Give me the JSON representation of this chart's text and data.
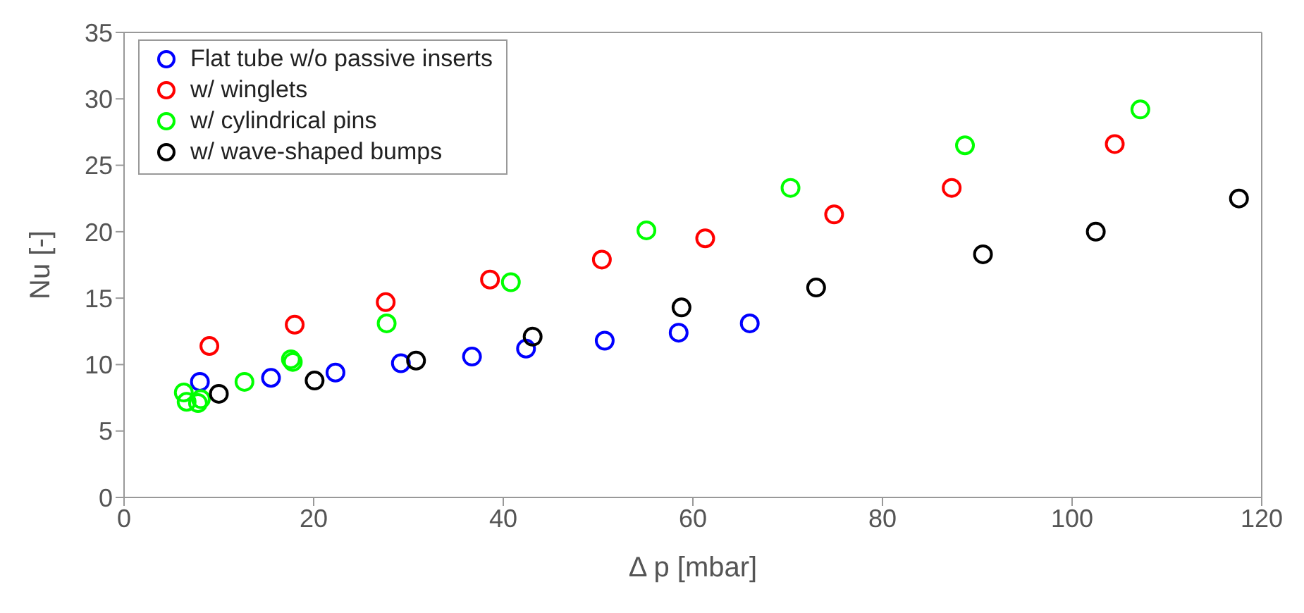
{
  "chart_data": {
    "type": "scatter",
    "xlabel": "Δ p [mbar]",
    "ylabel": "Nu [-]",
    "xlim": [
      0,
      120
    ],
    "xticks": [
      0,
      20,
      40,
      60,
      80,
      100,
      120
    ],
    "ylim": [
      0,
      35
    ],
    "yticks": [
      0,
      5,
      10,
      15,
      20,
      25,
      30,
      35
    ],
    "legend": "top left",
    "marker": "circle",
    "series": [
      {
        "name": "Flat tube w/o passive inserts",
        "color": "#0000ff",
        "x": [
          8,
          15.5,
          22.3,
          29.2,
          36.7,
          42.4,
          50.7,
          58.5,
          66
        ],
        "values": [
          8.7,
          9.0,
          9.4,
          10.1,
          10.6,
          11.2,
          11.8,
          12.4,
          13.1
        ]
      },
      {
        "name": "w/ winglets",
        "color": "#ff0000",
        "x": [
          9,
          18,
          27.6,
          38.6,
          50.4,
          61.3,
          74.9,
          87.3,
          104.5
        ],
        "values": [
          11.4,
          13,
          14.7,
          16.4,
          17.9,
          19.5,
          21.3,
          23.3,
          26.6
        ]
      },
      {
        "name": "w/ cylindrical pins",
        "color": "#00ff00",
        "x": [
          6.3,
          6.6,
          7.8,
          8.1,
          12.7,
          17.6,
          17.8,
          27.7,
          40.8,
          55.1,
          70.3,
          88.7,
          107.2
        ],
        "values": [
          7.9,
          7.2,
          7.1,
          7.4,
          8.7,
          10.4,
          10.2,
          13.1,
          16.2,
          20.1,
          23.3,
          26.5,
          29.2
        ]
      },
      {
        "name": "w/ wave-shaped bumps",
        "color": "#000000",
        "x": [
          10,
          20.1,
          30.8,
          43.1,
          58.8,
          73,
          90.6,
          102.5,
          117.6
        ],
        "values": [
          7.8,
          8.8,
          10.3,
          12.1,
          14.3,
          15.8,
          18.3,
          20,
          22.5
        ]
      }
    ]
  }
}
